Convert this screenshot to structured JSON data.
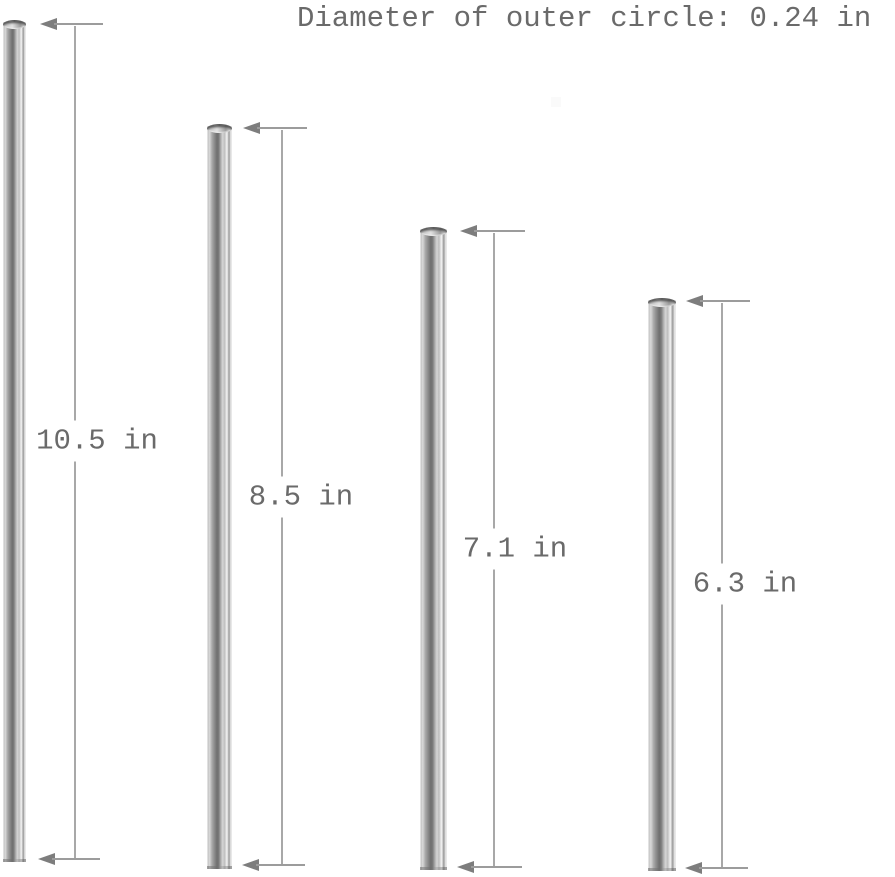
{
  "title": "Diameter of outer circle: 0.24 in",
  "outer_diameter_in": 0.24,
  "unit": "in",
  "straws": [
    {
      "label": "10.5 in",
      "length_in": 10.5
    },
    {
      "label": "8.5 in",
      "length_in": 8.5
    },
    {
      "label": "7.1 in",
      "length_in": 7.1
    },
    {
      "label": "6.3 in",
      "length_in": 6.3
    }
  ],
  "colors": {
    "background": "#ffffff",
    "text": "#6a6a6a",
    "dimension_line": "#9c9c9c",
    "arrowhead": "#7d7d7d",
    "metal_dark": "#6f6f6f",
    "metal_light": "#f5f5f5"
  }
}
